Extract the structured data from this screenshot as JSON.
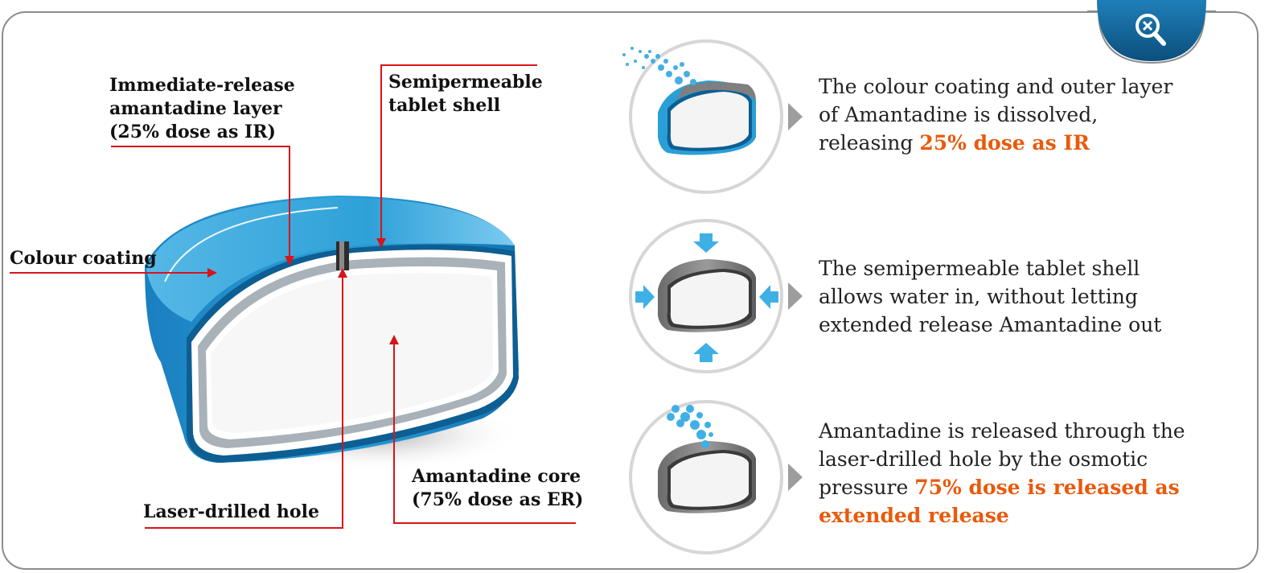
{
  "labels": {
    "ir_layer": [
      "Immediate-release",
      "amantadine layer",
      "(25% dose as IR)"
    ],
    "shell": [
      "Semipermeable",
      "tablet shell"
    ],
    "coating": "Colour coating",
    "hole": "Laser-drilled hole",
    "core": [
      "Amantadine core",
      "(75% dose as ER)"
    ]
  },
  "steps": [
    {
      "lines": [
        "The colour coating and outer layer",
        "of Amantadine is dissolved,"
      ],
      "prefix": "releasing ",
      "highlight": "25% dose as IR"
    },
    {
      "lines": [
        "The semipermeable tablet shell",
        "allows water in, without letting",
        "extended release Amantadine out"
      ]
    },
    {
      "lines": [
        "Amantadine is released through the",
        "laser-drilled hole by the osmotic"
      ],
      "prefix": "pressure ",
      "highlight": "75% dose is released as",
      "highlight2": "extended release"
    }
  ],
  "icons": {
    "zoom": "zoom-out-magnifier-icon",
    "arrow": "chevron-right-icon"
  },
  "colors": {
    "accent_orange": "#e95a0c",
    "callout_red": "#d7141a",
    "tablet_blue": "#2a9fd6",
    "tab_navy": "#0b4f7d"
  }
}
